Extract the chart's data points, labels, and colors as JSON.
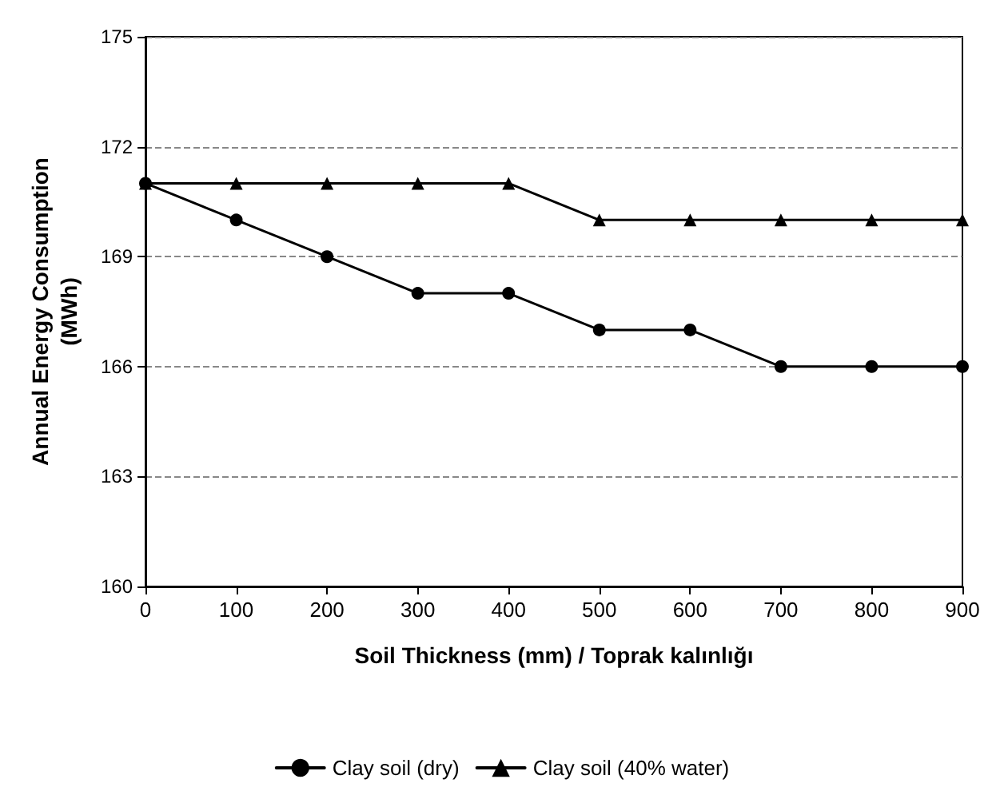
{
  "chart_data": {
    "type": "line",
    "xlabel": "Soil Thickness (mm) / Toprak kalınlığı",
    "ylabel": "Annual Energy Consumption\n(MWh)",
    "x": [
      0,
      100,
      200,
      300,
      400,
      500,
      600,
      700,
      800,
      900
    ],
    "series": [
      {
        "name": "Clay soil (dry)",
        "color": "#000000",
        "marker": "circle",
        "values": [
          171,
          170,
          169,
          168,
          168,
          167,
          167,
          166,
          166,
          166
        ]
      },
      {
        "name": "Clay soil (40% water)",
        "color": "#000000",
        "marker": "triangle",
        "values": [
          171,
          171,
          171,
          171,
          171,
          170,
          170,
          170,
          170,
          170
        ]
      }
    ],
    "xlim": [
      0,
      900
    ],
    "xticks": [
      0,
      100,
      200,
      300,
      400,
      500,
      600,
      700,
      800,
      900
    ],
    "ylim": [
      160,
      175
    ],
    "yticks": [
      160,
      163,
      166,
      169,
      172,
      175
    ],
    "grid": "y",
    "legend": "bottom",
    "line_style": "solid"
  }
}
